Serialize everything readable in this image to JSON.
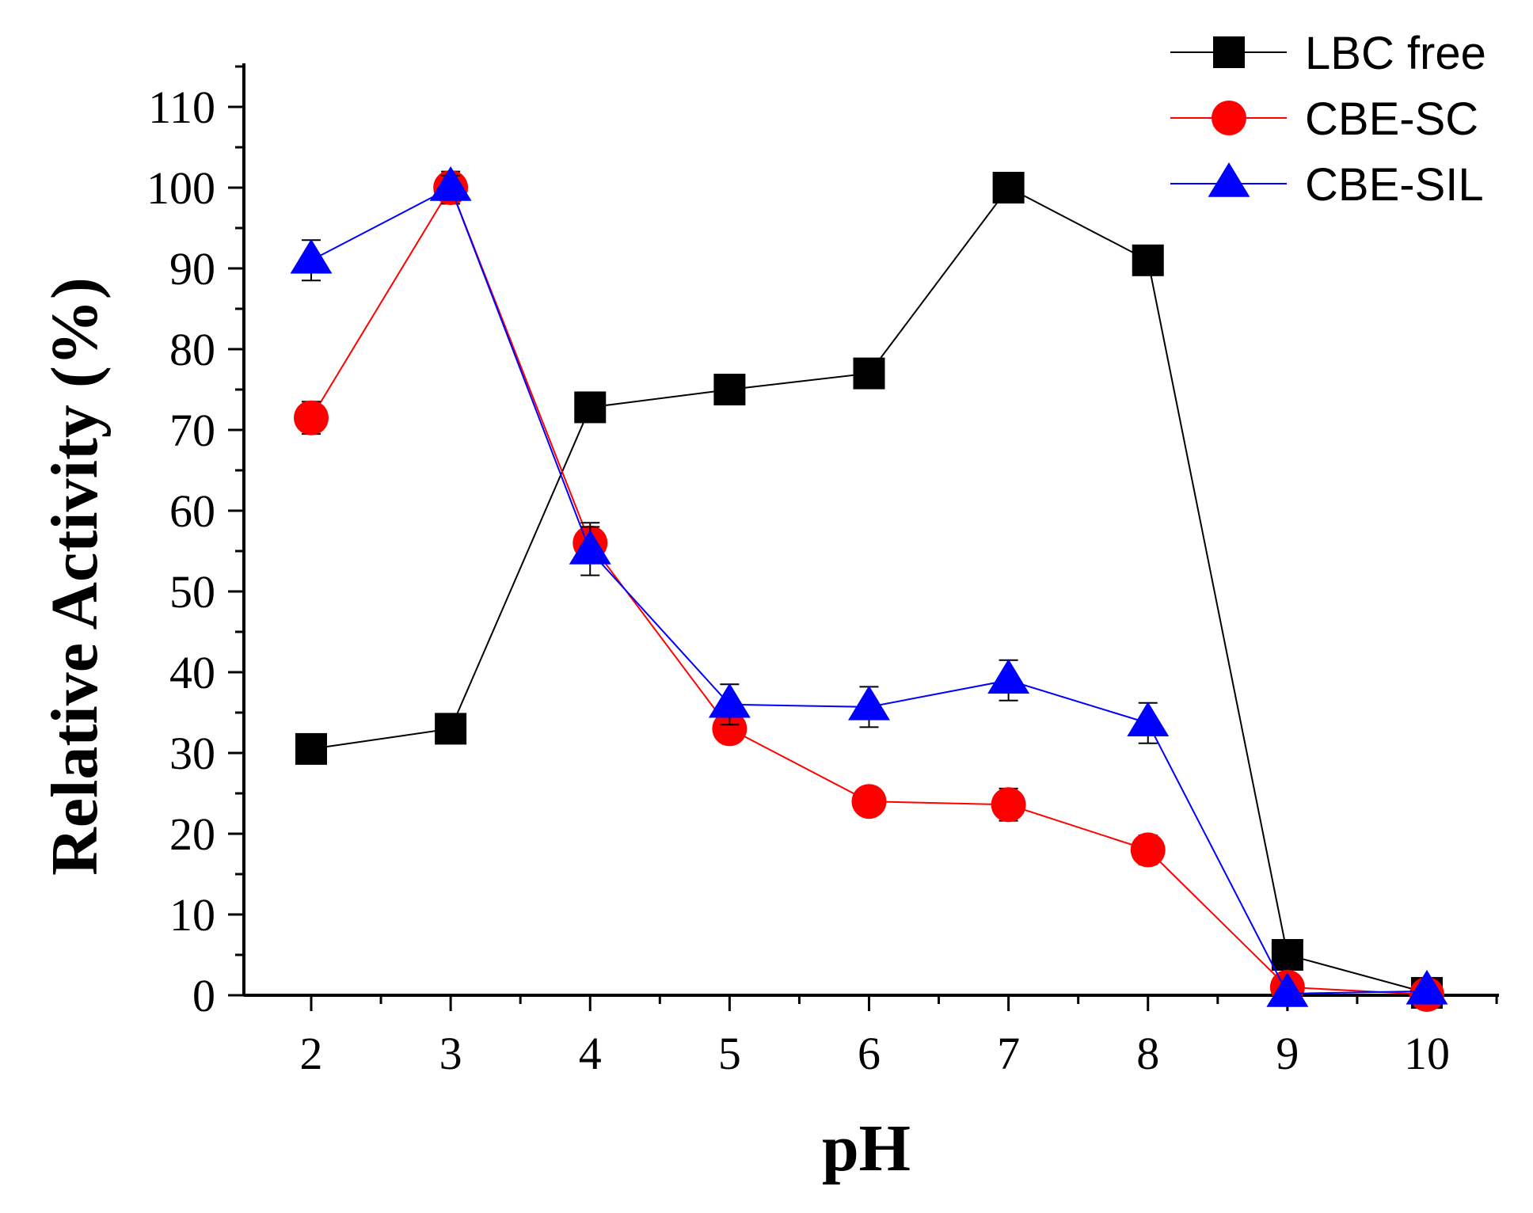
{
  "chart_data": {
    "type": "line",
    "title": "",
    "xlabel": "pH",
    "ylabel": "Relative Activity (%)",
    "xlim": [
      1.5,
      10.5
    ],
    "ylim": [
      0,
      115
    ],
    "x_ticks": [
      2,
      3,
      4,
      5,
      6,
      7,
      8,
      9,
      10
    ],
    "y_ticks": [
      0,
      10,
      20,
      30,
      40,
      50,
      60,
      70,
      80,
      90,
      100,
      110
    ],
    "grid": false,
    "legend_position": "top-right",
    "series": [
      {
        "name": "LBC free",
        "color": "#000000",
        "marker": "square",
        "x": [
          2,
          3,
          4,
          5,
          6,
          7,
          8,
          9,
          10
        ],
        "values": [
          30.5,
          33,
          72.8,
          75,
          77,
          100,
          91,
          5,
          0.3
        ],
        "errors": [
          0.8,
          0.8,
          1.2,
          1.2,
          1.2,
          1.0,
          1.2,
          0.8,
          0.2
        ]
      },
      {
        "name": "CBE-SC",
        "color": "#ff0000",
        "marker": "circle",
        "x": [
          2,
          3,
          4,
          5,
          6,
          7,
          8,
          9,
          10
        ],
        "values": [
          71.5,
          100,
          56,
          33,
          24,
          23.6,
          18,
          1,
          0.1
        ],
        "errors": [
          2.0,
          2.0,
          2.5,
          1.5,
          1.5,
          2.0,
          1.8,
          0.5,
          0.1
        ]
      },
      {
        "name": "CBE-SIL",
        "color": "#0000ff",
        "marker": "triangle",
        "x": [
          2,
          3,
          4,
          5,
          6,
          7,
          8,
          9,
          10
        ],
        "values": [
          91,
          100,
          55,
          36,
          35.7,
          39,
          33.7,
          0.2,
          0.5
        ],
        "errors": [
          2.5,
          1.5,
          3.0,
          2.5,
          2.5,
          2.5,
          2.5,
          0.2,
          0.2
        ]
      }
    ]
  }
}
